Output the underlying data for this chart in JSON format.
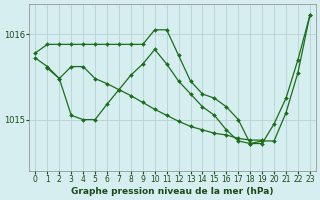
{
  "title": "Graphe pression niveau de la mer (hPa)",
  "bg_color": "#d6eef0",
  "grid_color": "#b0cccc",
  "line_color": "#1a6e1a",
  "label_color": "#1a4a1a",
  "xlim": [
    -0.5,
    23.5
  ],
  "ylim": [
    1014.4,
    1016.35
  ],
  "yticks": [
    1015,
    1016
  ],
  "xticks": [
    0,
    1,
    2,
    3,
    4,
    5,
    6,
    7,
    8,
    9,
    10,
    11,
    12,
    13,
    14,
    15,
    16,
    17,
    18,
    19,
    20,
    21,
    22,
    23
  ],
  "series": [
    {
      "x": [
        0,
        1,
        2,
        3,
        4,
        5,
        6,
        7,
        8,
        9,
        10,
        11,
        12,
        13,
        14,
        15,
        16,
        17,
        18,
        19,
        20,
        21,
        22,
        23
      ],
      "y": [
        1015.78,
        1015.88,
        1015.88,
        1015.88,
        1015.88,
        1015.88,
        1015.88,
        1015.88,
        1015.88,
        1015.88,
        1016.05,
        1016.05,
        1015.75,
        1015.45,
        1015.3,
        1015.25,
        1015.15,
        1015.0,
        1014.72,
        1014.72,
        1014.95,
        1015.25,
        1015.7,
        1016.22
      ]
    },
    {
      "x": [
        0,
        1,
        2,
        3,
        4,
        5,
        6,
        7,
        8,
        9,
        10,
        11,
        12,
        13,
        14,
        15,
        16,
        17,
        18,
        19
      ],
      "y": [
        1015.72,
        1015.62,
        1015.48,
        1015.62,
        1015.62,
        1015.48,
        1015.42,
        1015.35,
        1015.28,
        1015.2,
        1015.12,
        1015.05,
        1014.98,
        1014.92,
        1014.88,
        1014.84,
        1014.82,
        1014.78,
        1014.76,
        1014.76
      ]
    },
    {
      "x": [
        1,
        2,
        3,
        4,
        5,
        6,
        7,
        8,
        9,
        10,
        11,
        12,
        13,
        14,
        15,
        16,
        17,
        18,
        19,
        20,
        21,
        22,
        23
      ],
      "y": [
        1015.6,
        1015.48,
        1015.05,
        1015.0,
        1015.0,
        1015.18,
        1015.35,
        1015.52,
        1015.65,
        1015.82,
        1015.65,
        1015.45,
        1015.3,
        1015.15,
        1015.05,
        1014.88,
        1014.75,
        1014.72,
        1014.75,
        1014.75,
        1015.08,
        1015.55,
        1016.22
      ]
    }
  ]
}
